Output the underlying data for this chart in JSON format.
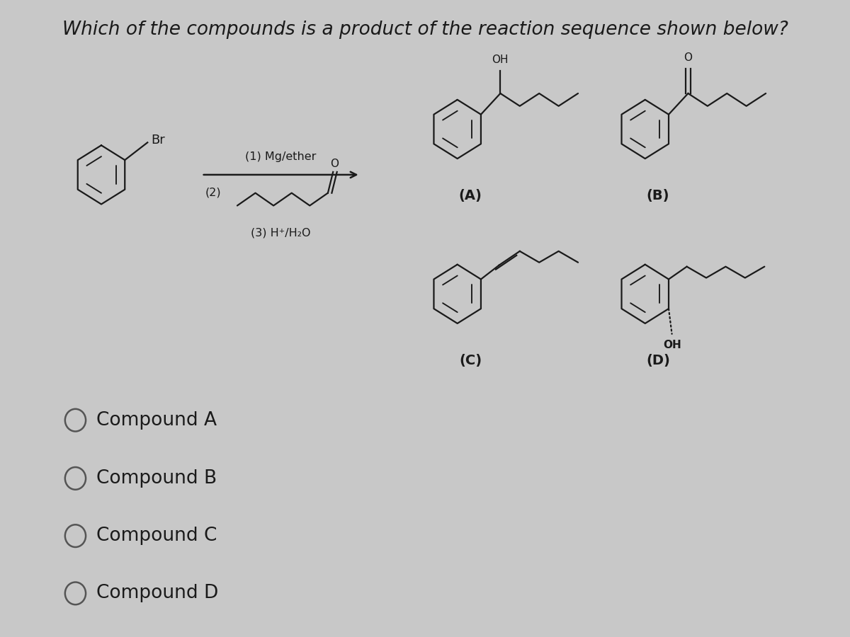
{
  "title": "Which of the compounds is a product of the reaction sequence shown below?",
  "background_color": "#c8c8c8",
  "text_color": "#1a1a1a",
  "title_fontsize": 19,
  "label_fontsize": 14,
  "option_fontsize": 19,
  "step1_text": "(1) Mg/ether",
  "step2_text": "(2)",
  "step3_text": "(3) H⁺/H₂O",
  "compound_labels": [
    "(A)",
    "(B)",
    "(C)",
    "(D)"
  ],
  "options": [
    "Compound A",
    "Compound B",
    "Compound C",
    "Compound D"
  ]
}
